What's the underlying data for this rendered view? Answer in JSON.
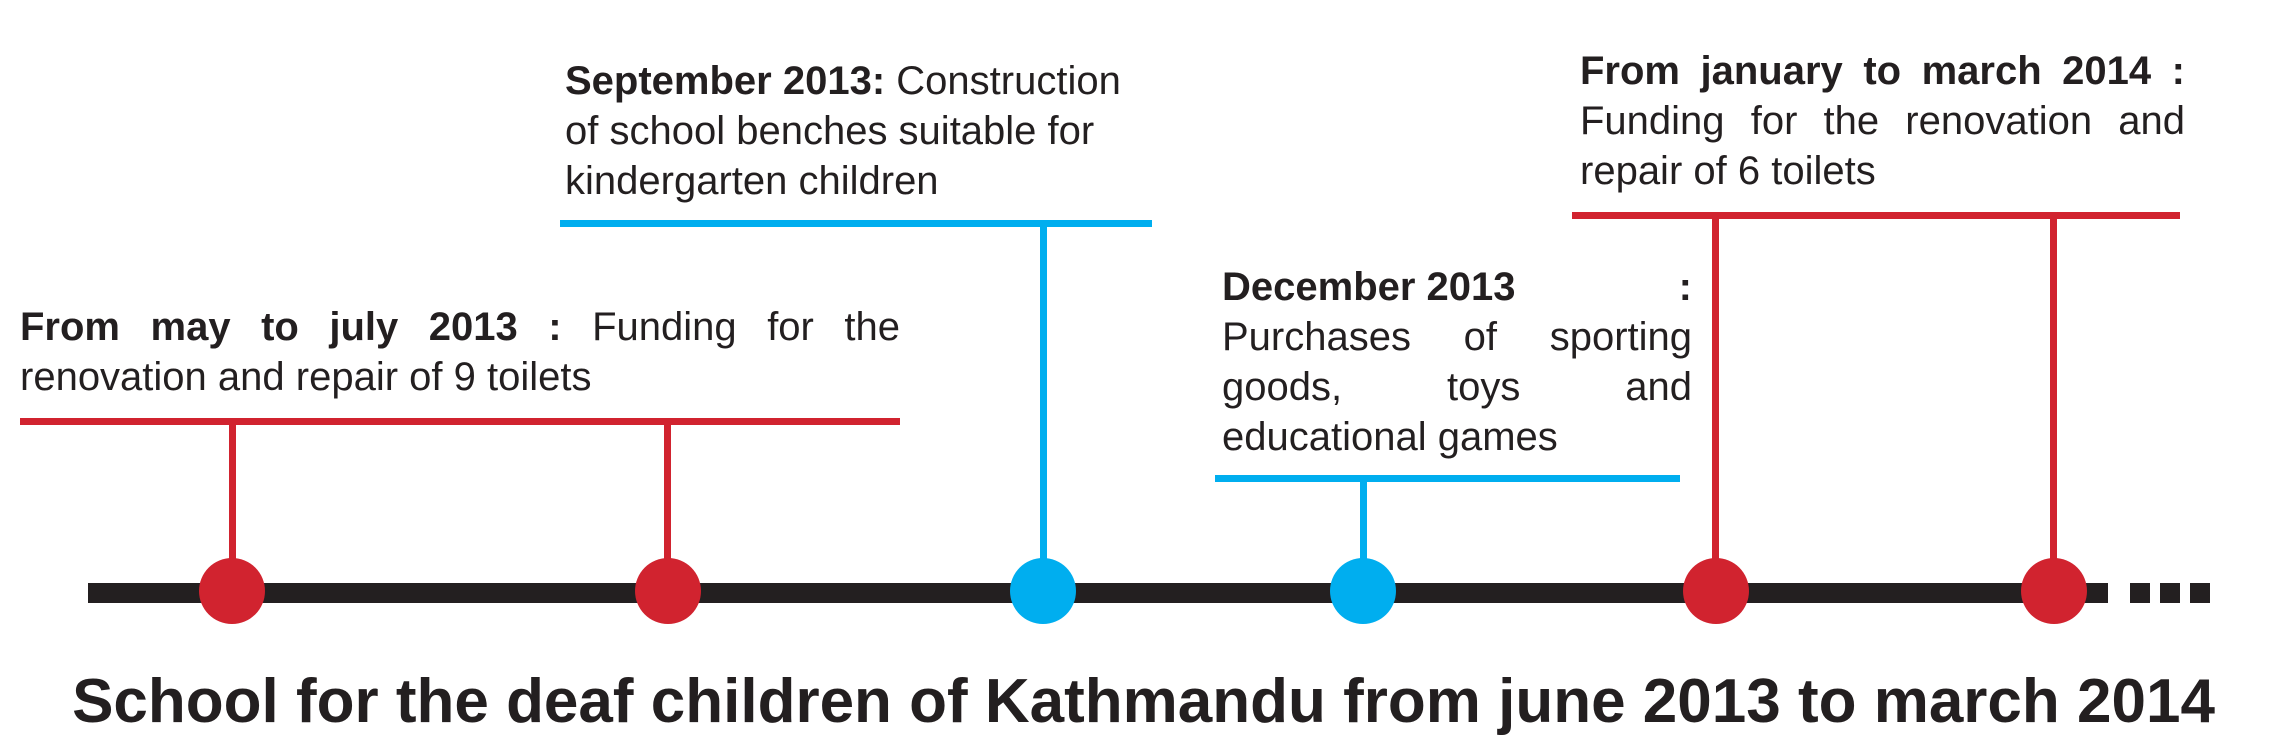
{
  "title": "School for the deaf children of Kathmandu from june 2013 to march 2014",
  "colors": {
    "axis": "#231f20",
    "red": "#d1232f",
    "blue": "#00aeef",
    "text": "#231f20"
  },
  "events": [
    {
      "label": "From may to july 2013",
      "separator": " :",
      "text": " Funding for the renovation and repair of 9 toilets",
      "color": "red",
      "marker_count": 2
    },
    {
      "label": "September 2013:",
      "text": " Construction of school benches suitable for kindergarten children",
      "color": "blue",
      "marker_count": 1
    },
    {
      "label": "December 2013",
      "separator": ":",
      "text": "Purchases of sporting goods, toys and educational games",
      "color": "blue",
      "marker_count": 1
    },
    {
      "label": "From january to march 2014",
      "separator": " :",
      "text": " Funding for the renovation and repair of 6 toilets",
      "color": "red",
      "marker_count": 2
    }
  ]
}
